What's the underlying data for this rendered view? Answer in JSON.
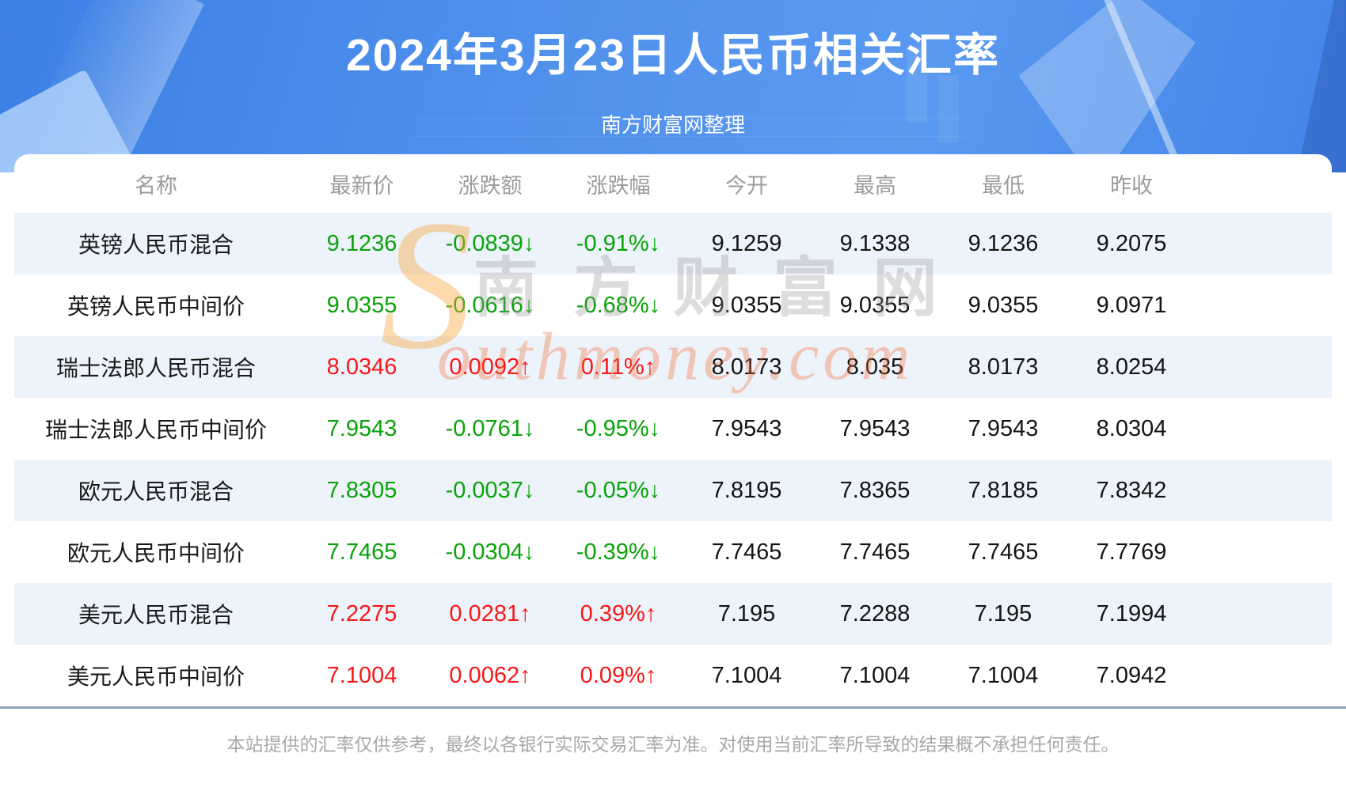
{
  "banner": {
    "title": "2024年3月23日人民币相关汇率",
    "subtitle": "南方财富网整理"
  },
  "table": {
    "headers": [
      "名称",
      "最新价",
      "涨跌额",
      "涨跌幅",
      "今开",
      "最高",
      "最低",
      "昨收"
    ],
    "rows": [
      {
        "name": "英镑人民币混合",
        "last": "9.1236",
        "change": "-0.0839↓",
        "change_pct": "-0.91%↓",
        "open": "9.1259",
        "high": "9.1338",
        "low": "9.1236",
        "prev_close": "9.2075",
        "trend": "down"
      },
      {
        "name": "英镑人民币中间价",
        "last": "9.0355",
        "change": "-0.0616↓",
        "change_pct": "-0.68%↓",
        "open": "9.0355",
        "high": "9.0355",
        "low": "9.0355",
        "prev_close": "9.0971",
        "trend": "down"
      },
      {
        "name": "瑞士法郎人民币混合",
        "last": "8.0346",
        "change": "0.0092↑",
        "change_pct": "0.11%↑",
        "open": "8.0173",
        "high": "8.035",
        "low": "8.0173",
        "prev_close": "8.0254",
        "trend": "up"
      },
      {
        "name": "瑞士法郎人民币中间价",
        "last": "7.9543",
        "change": "-0.0761↓",
        "change_pct": "-0.95%↓",
        "open": "7.9543",
        "high": "7.9543",
        "low": "7.9543",
        "prev_close": "8.0304",
        "trend": "down"
      },
      {
        "name": "欧元人民币混合",
        "last": "7.8305",
        "change": "-0.0037↓",
        "change_pct": "-0.05%↓",
        "open": "7.8195",
        "high": "7.8365",
        "low": "7.8185",
        "prev_close": "7.8342",
        "trend": "down"
      },
      {
        "name": "欧元人民币中间价",
        "last": "7.7465",
        "change": "-0.0304↓",
        "change_pct": "-0.39%↓",
        "open": "7.7465",
        "high": "7.7465",
        "low": "7.7465",
        "prev_close": "7.7769",
        "trend": "down"
      },
      {
        "name": "美元人民币混合",
        "last": "7.2275",
        "change": "0.0281↑",
        "change_pct": "0.39%↑",
        "open": "7.195",
        "high": "7.2288",
        "low": "7.195",
        "prev_close": "7.1994",
        "trend": "up"
      },
      {
        "name": "美元人民币中间价",
        "last": "7.1004",
        "change": "0.0062↑",
        "change_pct": "0.09%↑",
        "open": "7.1004",
        "high": "7.1004",
        "low": "7.1004",
        "prev_close": "7.0942",
        "trend": "up"
      }
    ]
  },
  "watermark": {
    "en_big": "S",
    "zh": "南方财富网",
    "en_rest": "outhmoney.com"
  },
  "footer": {
    "disclaimer": "本站提供的汇率仅供参考，最终以各银行实际交易汇率为准。对使用当前汇率所导致的结果概不承担任何责任。"
  },
  "colors": {
    "up_red": "#f71818",
    "down_green": "#09a309",
    "banner_blue": "#4f90ec",
    "stripe_blue": "#edf3fb",
    "divider_blue_grey": "#8ea7c0",
    "header_grey": "#9c9c9c"
  },
  "chart_data": {
    "type": "table",
    "title": "2024年3月23日人民币相关汇率",
    "subtitle": "南方财富网整理",
    "columns": [
      "名称",
      "最新价",
      "涨跌额",
      "涨跌幅",
      "今开",
      "最高",
      "最低",
      "昨收"
    ],
    "rows": [
      [
        "英镑人民币混合",
        "9.1236",
        "-0.0839↓",
        "-0.91%↓",
        "9.1259",
        "9.1338",
        "9.1236",
        "9.2075"
      ],
      [
        "英镑人民币中间价",
        "9.0355",
        "-0.0616↓",
        "-0.68%↓",
        "9.0355",
        "9.0355",
        "9.0355",
        "9.0971"
      ],
      [
        "瑞士法郎人民币混合",
        "8.0346",
        "0.0092↑",
        "0.11%↑",
        "8.0173",
        "8.035",
        "8.0173",
        "8.0254"
      ],
      [
        "瑞士法郎人民币中间价",
        "7.9543",
        "-0.0761↓",
        "-0.95%↓",
        "7.9543",
        "7.9543",
        "7.9543",
        "8.0304"
      ],
      [
        "欧元人民币混合",
        "7.8305",
        "-0.0037↓",
        "-0.05%↓",
        "7.8195",
        "7.8365",
        "7.8185",
        "7.8342"
      ],
      [
        "欧元人民币中间价",
        "7.7465",
        "-0.0304↓",
        "-0.39%↓",
        "7.7465",
        "7.7465",
        "7.7465",
        "7.7769"
      ],
      [
        "美元人民币混合",
        "7.2275",
        "0.0281↑",
        "0.39%↑",
        "7.195",
        "7.2288",
        "7.195",
        "7.1994"
      ],
      [
        "美元人民币中间价",
        "7.1004",
        "0.0062↑",
        "0.09%↑",
        "7.1004",
        "7.1004",
        "7.1004",
        "7.0942"
      ]
    ],
    "row_trends": [
      "down",
      "down",
      "up",
      "down",
      "down",
      "down",
      "up",
      "up"
    ],
    "legend_position": "none",
    "grid": false
  }
}
